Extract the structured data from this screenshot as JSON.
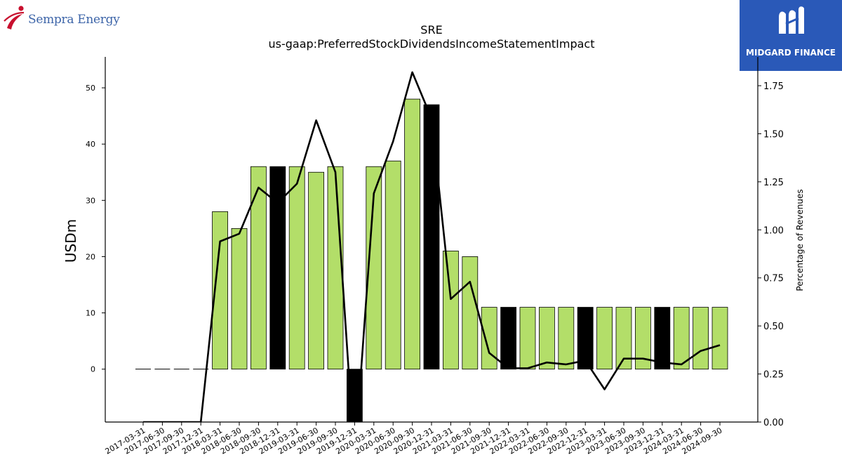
{
  "branding": {
    "left_logo_text": "Sempra Energy",
    "right_logo_text": "MIDGARD FINANCE"
  },
  "chart_data": {
    "type": "bar",
    "title": "SRE",
    "subtitle": "us-gaap:PreferredStockDividendsIncomeStatementImpact",
    "ylabel": "USDm",
    "y2label": "Percentage of Revenues",
    "ylim": [
      -9.4,
      55.5
    ],
    "y2lim": [
      0,
      1.9
    ],
    "yticks": [
      0,
      10,
      20,
      30,
      40,
      50
    ],
    "y2ticks": [
      "0.00",
      "0.25",
      "0.50",
      "0.75",
      "1.00",
      "1.25",
      "1.50",
      "1.75"
    ],
    "bar_color": "#b3de69",
    "highlight_color": "#000000",
    "line_color": "#000000",
    "categories": [
      "2017-03-31",
      "2017-06-30",
      "2017-09-30",
      "2017-12-31",
      "2018-03-31",
      "2018-06-30",
      "2018-09-30",
      "2018-12-31",
      "2019-03-31",
      "2019-06-30",
      "2019-09-30",
      "2019-12-31",
      "2020-03-31",
      "2020-06-30",
      "2020-09-30",
      "2020-12-31",
      "2021-03-31",
      "2021-06-30",
      "2021-09-30",
      "2021-12-31",
      "2022-03-31",
      "2022-06-30",
      "2022-09-30",
      "2022-12-31",
      "2023-03-31",
      "2023-06-30",
      "2023-09-30",
      "2023-12-31",
      "2024-03-31",
      "2024-06-30",
      "2024-09-30"
    ],
    "series": [
      {
        "type": "bar",
        "axis": "left",
        "values": [
          0,
          0,
          0,
          0,
          28,
          25,
          36,
          36,
          36,
          35,
          36,
          -9.4,
          36,
          37,
          48,
          47,
          21,
          20,
          11,
          11,
          11,
          11,
          11,
          11,
          11,
          11,
          11,
          11,
          11,
          11,
          11
        ],
        "highlighted": [
          false,
          false,
          false,
          false,
          false,
          false,
          false,
          true,
          false,
          false,
          false,
          true,
          false,
          false,
          false,
          true,
          false,
          false,
          false,
          true,
          false,
          false,
          false,
          true,
          false,
          false,
          false,
          true,
          false,
          false,
          false
        ]
      },
      {
        "type": "line",
        "axis": "right",
        "values": [
          0,
          0,
          0,
          0,
          0.94,
          0.98,
          1.22,
          1.14,
          1.24,
          1.57,
          1.3,
          -0.2,
          1.19,
          1.46,
          1.82,
          1.58,
          0.64,
          0.73,
          0.36,
          0.28,
          0.28,
          0.31,
          0.3,
          0.32,
          0.17,
          0.33,
          0.33,
          0.31,
          0.3,
          0.37,
          0.4
        ]
      }
    ]
  }
}
